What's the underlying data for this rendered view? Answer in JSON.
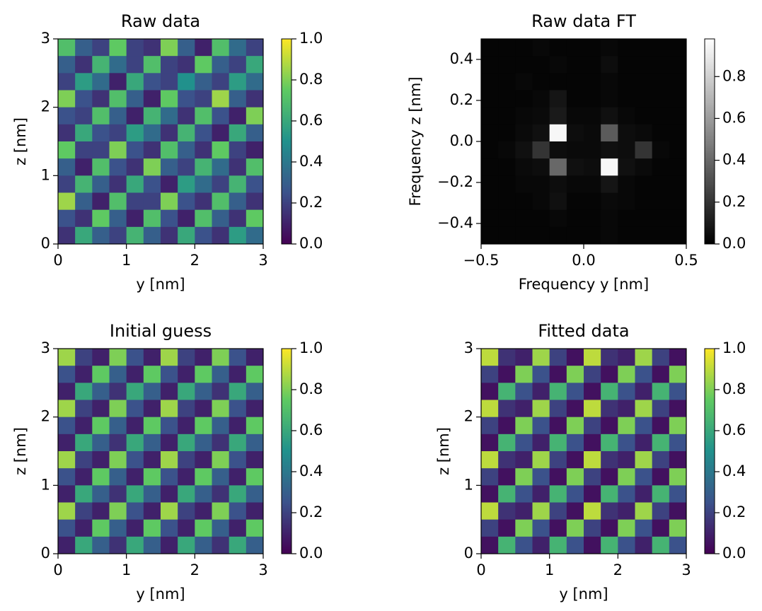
{
  "chart_data": [
    {
      "type": "heatmap",
      "title": "Raw data",
      "xlabel": "y [nm]",
      "ylabel": "z [nm]",
      "xlim": [
        0,
        3
      ],
      "ylim": [
        0,
        3
      ],
      "xticks": [
        0,
        1,
        2,
        3
      ],
      "yticks": [
        0,
        1,
        2,
        3
      ],
      "colormap": "viridis",
      "clim": [
        0,
        1
      ],
      "cticks": [
        {
          "value": 0,
          "label": "0.0"
        },
        0.2,
        0.4,
        0.6,
        0.8,
        {
          "value": 1,
          "label": "1.0"
        }
      ],
      "values": [
        [
          0.7,
          0.3,
          0.2,
          0.75,
          0.2,
          0.15,
          0.8,
          0.3,
          0.1,
          0.7,
          0.35,
          0.2
        ],
        [
          0.3,
          0.15,
          0.65,
          0.35,
          0.2,
          0.7,
          0.2,
          0.15,
          0.75,
          0.3,
          0.2,
          0.6
        ],
        [
          0.2,
          0.55,
          0.35,
          0.1,
          0.6,
          0.25,
          0.2,
          0.5,
          0.3,
          0.2,
          0.55,
          0.35
        ],
        [
          0.8,
          0.25,
          0.15,
          0.7,
          0.3,
          0.1,
          0.75,
          0.25,
          0.2,
          0.85,
          0.3,
          0.15
        ],
        [
          0.25,
          0.2,
          0.7,
          0.3,
          0.1,
          0.65,
          0.35,
          0.15,
          0.7,
          0.25,
          0.1,
          0.8
        ],
        [
          0.15,
          0.6,
          0.25,
          0.2,
          0.55,
          0.35,
          0.15,
          0.65,
          0.25,
          0.1,
          0.6,
          0.3
        ],
        [
          0.75,
          0.2,
          0.2,
          0.8,
          0.25,
          0.15,
          0.7,
          0.3,
          0.15,
          0.75,
          0.2,
          0.1
        ],
        [
          0.3,
          0.1,
          0.7,
          0.25,
          0.15,
          0.8,
          0.3,
          0.2,
          0.65,
          0.35,
          0.15,
          0.7
        ],
        [
          0.2,
          0.65,
          0.3,
          0.15,
          0.6,
          0.25,
          0.1,
          0.55,
          0.35,
          0.2,
          0.65,
          0.25
        ],
        [
          0.85,
          0.3,
          0.1,
          0.7,
          0.2,
          0.2,
          0.8,
          0.25,
          0.15,
          0.7,
          0.3,
          0.15
        ],
        [
          0.25,
          0.15,
          0.75,
          0.3,
          0.1,
          0.7,
          0.25,
          0.1,
          0.7,
          0.3,
          0.15,
          0.75
        ],
        [
          0.15,
          0.6,
          0.3,
          0.2,
          0.65,
          0.3,
          0.15,
          0.6,
          0.25,
          0.15,
          0.55,
          0.35
        ]
      ]
    },
    {
      "type": "heatmap",
      "title": "Raw data FT",
      "xlabel": "Frequency y [nm]",
      "ylabel": "Frequency z [nm]",
      "xlim": [
        -0.5,
        0.5
      ],
      "ylim": [
        -0.5,
        0.5
      ],
      "xticks": [
        {
          "value": -0.5,
          "label": "−0.5"
        },
        {
          "value": 0,
          "label": "0.0"
        },
        0.5
      ],
      "yticks": [
        {
          "value": -0.4,
          "label": "−0.4"
        },
        {
          "value": -0.2,
          "label": "−0.2"
        },
        {
          "value": 0,
          "label": "0.0"
        },
        0.2,
        0.4
      ],
      "colormap": "gray",
      "clim": [
        0,
        0.98
      ],
      "cticks": [
        {
          "value": 0,
          "label": "0.0"
        },
        0.2,
        0.4,
        0.6,
        0.8
      ],
      "values": [
        [
          0.02,
          0.02,
          0.02,
          0.03,
          0.02,
          0.02,
          0.02,
          0.03,
          0.02,
          0.02,
          0.02,
          0.02
        ],
        [
          0.02,
          0.02,
          0.02,
          0.02,
          0.03,
          0.02,
          0.02,
          0.05,
          0.02,
          0.02,
          0.02,
          0.02
        ],
        [
          0.02,
          0.02,
          0.03,
          0.02,
          0.02,
          0.02,
          0.02,
          0.03,
          0.02,
          0.02,
          0.02,
          0.02
        ],
        [
          0.02,
          0.02,
          0.02,
          0.03,
          0.08,
          0.02,
          0.02,
          0.03,
          0.02,
          0.02,
          0.02,
          0.02
        ],
        [
          0.02,
          0.02,
          0.03,
          0.04,
          0.1,
          0.03,
          0.03,
          0.06,
          0.03,
          0.02,
          0.02,
          0.02
        ],
        [
          0.02,
          0.02,
          0.04,
          0.06,
          0.95,
          0.05,
          0.04,
          0.35,
          0.05,
          0.04,
          0.02,
          0.02
        ],
        [
          0.02,
          0.03,
          0.06,
          0.2,
          0.05,
          0.04,
          0.04,
          0.06,
          0.05,
          0.2,
          0.03,
          0.02
        ],
        [
          0.02,
          0.02,
          0.04,
          0.05,
          0.4,
          0.06,
          0.05,
          0.95,
          0.06,
          0.04,
          0.02,
          0.02
        ],
        [
          0.02,
          0.02,
          0.03,
          0.03,
          0.05,
          0.03,
          0.03,
          0.08,
          0.03,
          0.02,
          0.02,
          0.02
        ],
        [
          0.02,
          0.02,
          0.02,
          0.03,
          0.06,
          0.02,
          0.02,
          0.04,
          0.03,
          0.02,
          0.02,
          0.02
        ],
        [
          0.02,
          0.02,
          0.02,
          0.02,
          0.03,
          0.02,
          0.02,
          0.03,
          0.02,
          0.02,
          0.02,
          0.02
        ],
        [
          0.02,
          0.02,
          0.02,
          0.02,
          0.02,
          0.02,
          0.02,
          0.03,
          0.02,
          0.02,
          0.02,
          0.02
        ]
      ]
    },
    {
      "type": "heatmap",
      "title": "Initial guess",
      "xlabel": "y [nm]",
      "ylabel": "z [nm]",
      "xlim": [
        0,
        3
      ],
      "ylim": [
        0,
        3
      ],
      "xticks": [
        0,
        1,
        2,
        3
      ],
      "yticks": [
        0,
        1,
        2,
        3
      ],
      "colormap": "viridis",
      "clim": [
        0,
        1
      ],
      "cticks": [
        {
          "value": 0,
          "label": "0.0"
        },
        0.2,
        0.4,
        0.6,
        0.8,
        {
          "value": 1,
          "label": "1.0"
        }
      ],
      "values": [
        [
          0.85,
          0.2,
          0.1,
          0.8,
          0.25,
          0.1,
          0.85,
          0.2,
          0.1,
          0.8,
          0.25,
          0.1
        ],
        [
          0.25,
          0.1,
          0.75,
          0.3,
          0.1,
          0.75,
          0.25,
          0.1,
          0.75,
          0.3,
          0.1,
          0.75
        ],
        [
          0.1,
          0.6,
          0.3,
          0.15,
          0.6,
          0.3,
          0.1,
          0.6,
          0.3,
          0.15,
          0.6,
          0.3
        ],
        [
          0.85,
          0.2,
          0.1,
          0.8,
          0.25,
          0.1,
          0.85,
          0.2,
          0.1,
          0.8,
          0.25,
          0.1
        ],
        [
          0.25,
          0.1,
          0.75,
          0.3,
          0.1,
          0.75,
          0.25,
          0.1,
          0.75,
          0.3,
          0.1,
          0.75
        ],
        [
          0.1,
          0.6,
          0.3,
          0.15,
          0.6,
          0.3,
          0.1,
          0.6,
          0.3,
          0.15,
          0.6,
          0.3
        ],
        [
          0.85,
          0.2,
          0.1,
          0.8,
          0.25,
          0.1,
          0.85,
          0.2,
          0.1,
          0.8,
          0.25,
          0.1
        ],
        [
          0.25,
          0.1,
          0.75,
          0.3,
          0.1,
          0.75,
          0.25,
          0.1,
          0.75,
          0.3,
          0.1,
          0.75
        ],
        [
          0.1,
          0.6,
          0.3,
          0.15,
          0.6,
          0.3,
          0.1,
          0.6,
          0.3,
          0.15,
          0.6,
          0.3
        ],
        [
          0.85,
          0.2,
          0.1,
          0.8,
          0.25,
          0.1,
          0.85,
          0.2,
          0.1,
          0.8,
          0.25,
          0.1
        ],
        [
          0.25,
          0.1,
          0.75,
          0.3,
          0.1,
          0.75,
          0.25,
          0.1,
          0.75,
          0.3,
          0.1,
          0.75
        ],
        [
          0.1,
          0.6,
          0.3,
          0.15,
          0.6,
          0.3,
          0.1,
          0.6,
          0.3,
          0.15,
          0.6,
          0.3
        ]
      ]
    },
    {
      "type": "heatmap",
      "title": "Fitted data",
      "xlabel": "y [nm]",
      "ylabel": "z [nm]",
      "xlim": [
        0,
        3
      ],
      "ylim": [
        0,
        3
      ],
      "xticks": [
        0,
        1,
        2,
        3
      ],
      "yticks": [
        0,
        1,
        2,
        3
      ],
      "colormap": "viridis",
      "clim": [
        0,
        1
      ],
      "cticks": [
        {
          "value": 0,
          "label": "0.0"
        },
        0.2,
        0.4,
        0.6,
        0.8,
        {
          "value": 1,
          "label": "1.0"
        }
      ],
      "values": [
        [
          0.9,
          0.15,
          0.1,
          0.85,
          0.2,
          0.05,
          0.9,
          0.15,
          0.1,
          0.85,
          0.2,
          0.05
        ],
        [
          0.2,
          0.05,
          0.8,
          0.25,
          0.05,
          0.8,
          0.2,
          0.05,
          0.8,
          0.25,
          0.05,
          0.8
        ],
        [
          0.05,
          0.65,
          0.25,
          0.1,
          0.65,
          0.25,
          0.05,
          0.65,
          0.25,
          0.1,
          0.65,
          0.25
        ],
        [
          0.9,
          0.15,
          0.1,
          0.85,
          0.2,
          0.05,
          0.9,
          0.15,
          0.1,
          0.85,
          0.2,
          0.05
        ],
        [
          0.2,
          0.05,
          0.8,
          0.25,
          0.05,
          0.8,
          0.2,
          0.05,
          0.8,
          0.25,
          0.05,
          0.8
        ],
        [
          0.05,
          0.65,
          0.25,
          0.1,
          0.65,
          0.25,
          0.05,
          0.65,
          0.25,
          0.1,
          0.65,
          0.25
        ],
        [
          0.9,
          0.15,
          0.1,
          0.85,
          0.2,
          0.05,
          0.9,
          0.15,
          0.1,
          0.85,
          0.2,
          0.05
        ],
        [
          0.2,
          0.05,
          0.8,
          0.25,
          0.05,
          0.8,
          0.2,
          0.05,
          0.8,
          0.25,
          0.05,
          0.8
        ],
        [
          0.05,
          0.65,
          0.25,
          0.1,
          0.65,
          0.25,
          0.05,
          0.65,
          0.25,
          0.1,
          0.65,
          0.25
        ],
        [
          0.9,
          0.15,
          0.1,
          0.85,
          0.2,
          0.05,
          0.9,
          0.15,
          0.1,
          0.85,
          0.2,
          0.05
        ],
        [
          0.2,
          0.05,
          0.8,
          0.25,
          0.05,
          0.8,
          0.2,
          0.05,
          0.8,
          0.25,
          0.05,
          0.8
        ],
        [
          0.05,
          0.65,
          0.25,
          0.1,
          0.65,
          0.25,
          0.05,
          0.65,
          0.25,
          0.1,
          0.65,
          0.25
        ]
      ]
    }
  ]
}
